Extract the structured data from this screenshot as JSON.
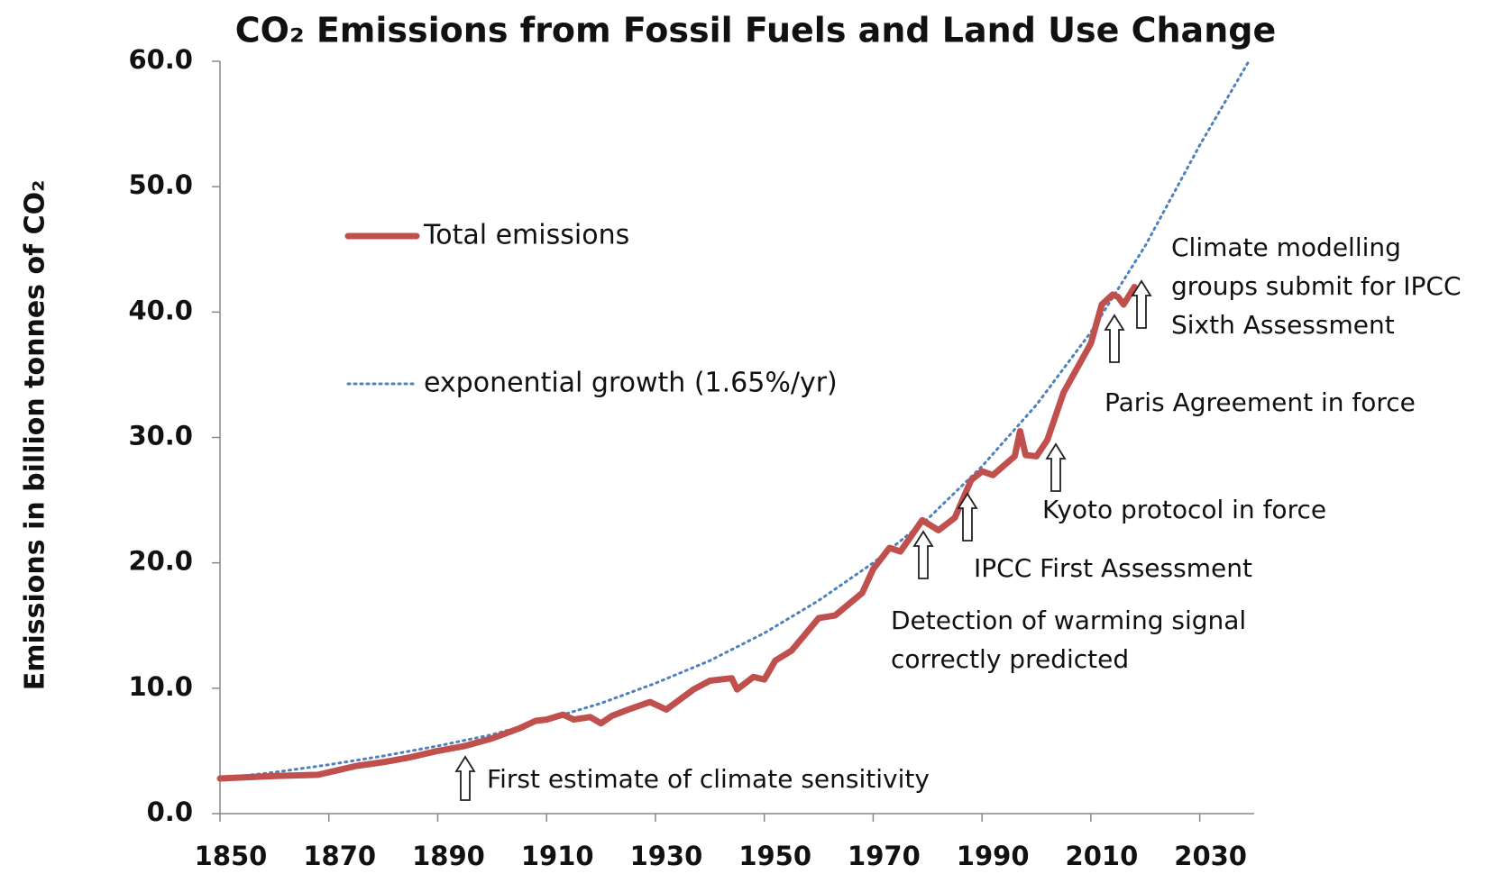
{
  "chart_data": {
    "type": "line",
    "title": "CO₂ Emissions from Fossil Fuels and Land Use Change",
    "y_label": "Emissions in billion tonnes of CO₂",
    "xlim": [
      1850,
      2040
    ],
    "xticks": [
      1850,
      1870,
      1890,
      1910,
      1930,
      1950,
      1970,
      1990,
      2010,
      2030
    ],
    "ylim": [
      0,
      60
    ],
    "yticks": [
      {
        "value": 0,
        "label": "0.0"
      },
      {
        "value": 10,
        "label": "10.0"
      },
      {
        "value": 20,
        "label": "20.0"
      },
      {
        "value": 30,
        "label": "30.0"
      },
      {
        "value": 40,
        "label": "40.0"
      },
      {
        "value": 50,
        "label": "50.0"
      },
      {
        "value": 60,
        "label": "60.0"
      }
    ],
    "grid": false,
    "series": [
      {
        "name": "Total emissions",
        "color": "#c0504d",
        "style": "solid",
        "x": [
          1850,
          1860,
          1868,
          1875,
          1880,
          1885,
          1890,
          1895,
          1900,
          1905,
          1908,
          1910,
          1913,
          1915,
          1918,
          1920,
          1922,
          1925,
          1929,
          1932,
          1937,
          1940,
          1944,
          1945,
          1948,
          1950,
          1952,
          1955,
          1960,
          1963,
          1968,
          1970,
          1973,
          1975,
          1979,
          1982,
          1985,
          1988,
          1990,
          1992,
          1996,
          1997,
          1998,
          2000,
          2002,
          2005,
          2010,
          2012,
          2014,
          2015,
          2016,
          2018
        ],
        "values": [
          2.8,
          3.0,
          3.1,
          3.8,
          4.1,
          4.5,
          5.0,
          5.4,
          6.0,
          6.8,
          7.4,
          7.5,
          7.9,
          7.5,
          7.7,
          7.2,
          7.8,
          8.3,
          8.9,
          8.3,
          9.9,
          10.6,
          10.8,
          9.9,
          10.9,
          10.7,
          12.2,
          13.0,
          15.6,
          15.8,
          17.6,
          19.5,
          21.2,
          20.9,
          23.4,
          22.6,
          23.6,
          26.6,
          27.3,
          27.0,
          28.5,
          30.5,
          28.6,
          28.5,
          29.8,
          33.6,
          37.5,
          40.6,
          41.4,
          41.2,
          40.6,
          42.0
        ]
      },
      {
        "name": "exponential growth (1.65%/yr)",
        "color": "#4f81bd",
        "style": "dotted",
        "x": [
          1850,
          1860,
          1870,
          1880,
          1890,
          1900,
          1910,
          1920,
          1930,
          1940,
          1950,
          1960,
          1970,
          1980,
          1990,
          2000,
          2010,
          2020,
          2030,
          2039
        ],
        "values": [
          2.8,
          3.3,
          3.9,
          4.6,
          5.4,
          6.3,
          7.5,
          8.8,
          10.4,
          12.2,
          14.4,
          17.0,
          20.0,
          23.5,
          27.7,
          32.6,
          38.4,
          45.3,
          53.3,
          60.0
        ]
      }
    ],
    "annotations": [
      [
        "First estimate of climate sensitivity"
      ],
      [
        "Detection of warming signal",
        "correctly predicted"
      ],
      [
        "IPCC First Assessment"
      ],
      [
        "Kyoto protocol in force"
      ],
      [
        "Paris Agreement in force"
      ],
      [
        "Climate modelling",
        "groups submit for IPCC",
        "Sixth Assessment"
      ]
    ]
  }
}
